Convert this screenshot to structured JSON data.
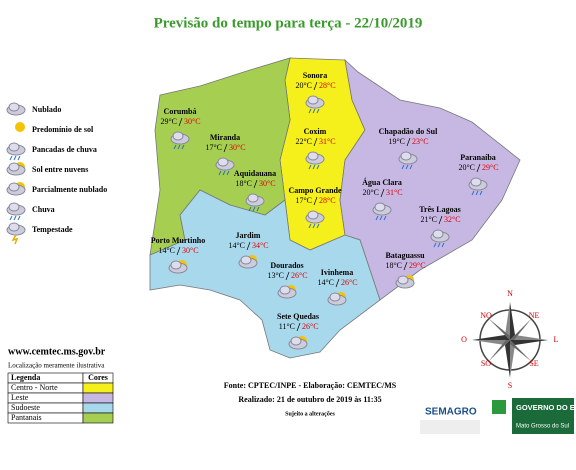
{
  "title": "Previsão do tempo para terça - 22/10/2019",
  "icon_legend": [
    "Nublado",
    "Predomínio de sol",
    "Pancadas de chuva",
    "Sol entre nuvens",
    "Parcialmente nublado",
    "Chuva",
    "Tempestade"
  ],
  "cities": [
    {
      "name": "Sonora",
      "min": "20°C",
      "max": "28°C"
    },
    {
      "name": "Corumbá",
      "min": "29°C",
      "max": "30°C"
    },
    {
      "name": "Miranda",
      "min": "17°C",
      "max": "30°C"
    },
    {
      "name": "Coxim",
      "min": "22°C",
      "max": "31°C"
    },
    {
      "name": "Chapadão do Sul",
      "min": "19°C",
      "max": "23°C"
    },
    {
      "name": "Paranaíba",
      "min": "20°C",
      "max": "29°C"
    },
    {
      "name": "Aquidauana",
      "min": "18°C",
      "max": "30°C"
    },
    {
      "name": "Campo Grande",
      "min": "17°C",
      "max": "28°C"
    },
    {
      "name": "Água Clara",
      "min": "20°C",
      "max": "31°C"
    },
    {
      "name": "Três Lagoas",
      "min": "21°C",
      "max": "32°C"
    },
    {
      "name": "Porto Murtinho",
      "min": "14°C",
      "max": "30°C"
    },
    {
      "name": "Jardim",
      "min": "14°C",
      "max": "34°C"
    },
    {
      "name": "Bataguassu",
      "min": "18°C",
      "max": "29°C"
    },
    {
      "name": "Dourados",
      "min": "13°C",
      "max": "26°C"
    },
    {
      "name": "Ivinhema",
      "min": "14°C",
      "max": "26°C"
    },
    {
      "name": "Sete Quedas",
      "min": "11°C",
      "max": "26°C"
    }
  ],
  "website": "www.cemtec.ms.gov.br",
  "note": "Localização meramente ilustrativa",
  "legend_table": {
    "header": [
      "Legenda",
      "Cores"
    ],
    "rows": [
      {
        "label": "Centro - Norte",
        "color": "#f5ef1c"
      },
      {
        "label": "Leste",
        "color": "#c6b8e3"
      },
      {
        "label": "Sudoeste",
        "color": "#a8d8ec"
      },
      {
        "label": "Pantanais",
        "color": "#a6cf52"
      }
    ]
  },
  "compass": [
    "N",
    "NE",
    "L",
    "SE",
    "S",
    "SO",
    "O",
    "NO"
  ],
  "footer": {
    "source": "Fonte: CPTEC/INPE - Elaboração: CEMTEC/MS",
    "made": "Realizado: 21 de outubro de 2019 às 11:35",
    "disclaimer": "Sujeito a alterações"
  },
  "logos": {
    "semagro": "SEMAGRO",
    "gov": "GOVERNO DO ESTADO",
    "state": "Mato Grosso do Sul"
  }
}
